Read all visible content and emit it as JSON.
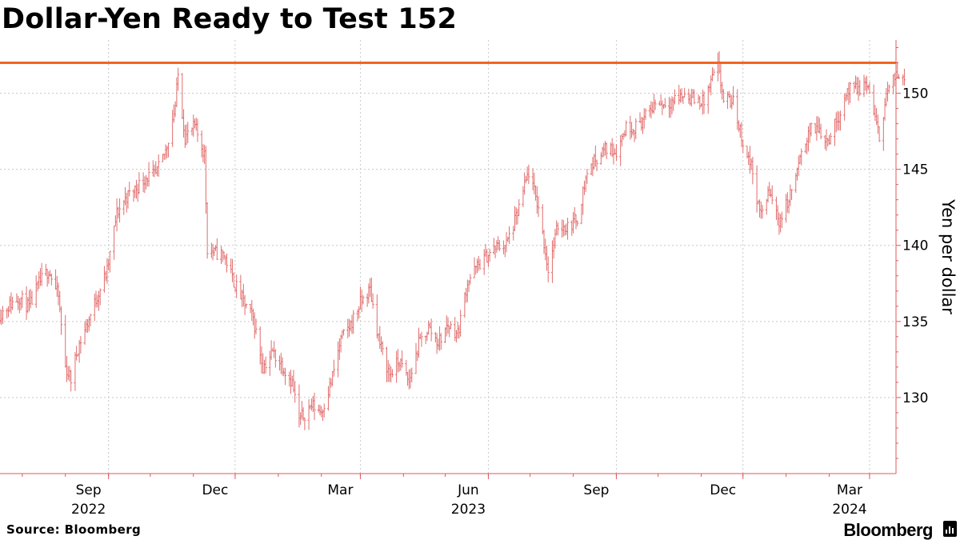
{
  "title": "Dollar-Yen Ready to Test 152",
  "source": "Source: Bloomberg",
  "brand": "Bloomberg",
  "brand_icon": "bloomberg-terminal-icon",
  "colors": {
    "bars": "#e26d6d",
    "threshold_line": "#f26522",
    "axis": "#e05a5a",
    "grid": "#c8c8c8",
    "text": "#000000"
  },
  "chart_data": {
    "type": "ohlc",
    "title": "Dollar-Yen Ready to Test 152",
    "ylabel": "Yen per dollar",
    "xlabel": "",
    "y_axis_position": "right",
    "grid": "dotted",
    "legend": "none",
    "ylim": [
      125,
      153.5
    ],
    "xlim": [
      "2022-06-15",
      "2024-03-20"
    ],
    "yticks": [
      130,
      135,
      140,
      145,
      150
    ],
    "xticks": [
      {
        "date": "2022-09-01",
        "label": "Sep",
        "year": "2022"
      },
      {
        "date": "2022-12-01",
        "label": "Dec",
        "year": ""
      },
      {
        "date": "2023-03-01",
        "label": "Mar",
        "year": ""
      },
      {
        "date": "2023-06-01",
        "label": "Jun",
        "year": "2023"
      },
      {
        "date": "2023-09-01",
        "label": "Sep",
        "year": ""
      },
      {
        "date": "2023-12-01",
        "label": "Dec",
        "year": ""
      },
      {
        "date": "2024-03-01",
        "label": "Mar",
        "year": "2024"
      }
    ],
    "threshold": {
      "value": 152
    },
    "series_closes": [
      [
        "2022-06-15",
        135.5
      ],
      [
        "2022-06-22",
        136.1
      ],
      [
        "2022-06-29",
        136.6
      ],
      [
        "2022-07-06",
        135.9
      ],
      [
        "2022-07-13",
        137.5
      ],
      [
        "2022-07-20",
        138.4
      ],
      [
        "2022-07-27",
        136.6
      ],
      [
        "2022-08-01",
        132.0
      ],
      [
        "2022-08-05",
        131.2
      ],
      [
        "2022-08-10",
        133.3
      ],
      [
        "2022-08-17",
        134.9
      ],
      [
        "2022-08-24",
        136.7
      ],
      [
        "2022-08-31",
        138.3
      ],
      [
        "2022-09-07",
        142.1
      ],
      [
        "2022-09-14",
        143.2
      ],
      [
        "2022-09-21",
        143.8
      ],
      [
        "2022-09-28",
        144.5
      ],
      [
        "2022-10-05",
        144.6
      ],
      [
        "2022-10-12",
        146.2
      ],
      [
        "2022-10-19",
        149.2
      ],
      [
        "2022-10-21",
        151.2
      ],
      [
        "2022-10-26",
        147.1
      ],
      [
        "2022-11-02",
        147.8
      ],
      [
        "2022-11-09",
        146.0
      ],
      [
        "2022-11-11",
        139.8
      ],
      [
        "2022-11-16",
        139.5
      ],
      [
        "2022-11-23",
        139.4
      ],
      [
        "2022-11-30",
        137.6
      ],
      [
        "2022-12-07",
        136.3
      ],
      [
        "2022-12-14",
        135.2
      ],
      [
        "2022-12-21",
        132.0
      ],
      [
        "2022-12-28",
        133.0
      ],
      [
        "2023-01-04",
        132.1
      ],
      [
        "2023-01-11",
        131.0
      ],
      [
        "2023-01-16",
        128.5
      ],
      [
        "2023-01-25",
        129.5
      ],
      [
        "2023-02-01",
        129.1
      ],
      [
        "2023-02-08",
        131.0
      ],
      [
        "2023-02-15",
        133.8
      ],
      [
        "2023-02-22",
        134.8
      ],
      [
        "2023-03-01",
        136.2
      ],
      [
        "2023-03-08",
        137.1
      ],
      [
        "2023-03-15",
        133.5
      ],
      [
        "2023-03-22",
        131.5
      ],
      [
        "2023-03-29",
        132.4
      ],
      [
        "2023-04-05",
        131.0
      ],
      [
        "2023-04-12",
        133.5
      ],
      [
        "2023-04-19",
        134.6
      ],
      [
        "2023-04-26",
        133.6
      ],
      [
        "2023-05-03",
        134.8
      ],
      [
        "2023-05-10",
        134.2
      ],
      [
        "2023-05-17",
        137.6
      ],
      [
        "2023-05-24",
        138.6
      ],
      [
        "2023-05-31",
        139.3
      ],
      [
        "2023-06-07",
        139.9
      ],
      [
        "2023-06-14",
        140.1
      ],
      [
        "2023-06-21",
        141.8
      ],
      [
        "2023-06-28",
        144.2
      ],
      [
        "2023-06-30",
        144.8
      ],
      [
        "2023-07-07",
        142.5
      ],
      [
        "2023-07-14",
        138.4
      ],
      [
        "2023-07-21",
        141.3
      ],
      [
        "2023-07-28",
        141.2
      ],
      [
        "2023-08-04",
        141.8
      ],
      [
        "2023-08-11",
        144.8
      ],
      [
        "2023-08-18",
        145.8
      ],
      [
        "2023-08-25",
        146.4
      ],
      [
        "2023-09-01",
        146.2
      ],
      [
        "2023-09-08",
        147.8
      ],
      [
        "2023-09-15",
        147.8
      ],
      [
        "2023-09-22",
        148.4
      ],
      [
        "2023-09-29",
        149.4
      ],
      [
        "2023-10-06",
        149.3
      ],
      [
        "2023-10-13",
        149.6
      ],
      [
        "2023-10-20",
        149.9
      ],
      [
        "2023-10-27",
        149.6
      ],
      [
        "2023-11-03",
        149.4
      ],
      [
        "2023-11-10",
        151.2
      ],
      [
        "2023-11-13",
        151.7
      ],
      [
        "2023-11-17",
        149.6
      ],
      [
        "2023-11-24",
        149.4
      ],
      [
        "2023-12-01",
        146.8
      ],
      [
        "2023-12-08",
        144.9
      ],
      [
        "2023-12-13",
        142.0
      ],
      [
        "2023-12-20",
        143.5
      ],
      [
        "2023-12-27",
        141.6
      ],
      [
        "2024-01-03",
        143.0
      ],
      [
        "2024-01-10",
        145.2
      ],
      [
        "2024-01-17",
        147.5
      ],
      [
        "2024-01-24",
        147.7
      ],
      [
        "2024-01-31",
        146.9
      ],
      [
        "2024-02-07",
        148.3
      ],
      [
        "2024-02-14",
        150.2
      ],
      [
        "2024-02-21",
        150.2
      ],
      [
        "2024-02-28",
        150.6
      ],
      [
        "2024-03-01",
        150.1
      ],
      [
        "2024-03-06",
        147.8
      ],
      [
        "2024-03-08",
        147.1
      ],
      [
        "2024-03-13",
        149.9
      ],
      [
        "2024-03-19",
        151.0
      ],
      [
        "2024-03-26",
        151.3
      ]
    ]
  }
}
